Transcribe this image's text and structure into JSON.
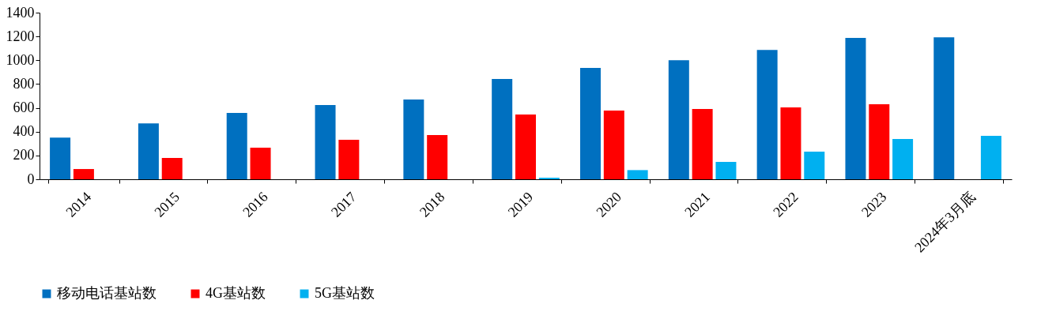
{
  "chart_data": {
    "type": "bar",
    "categories": [
      "2014",
      "2015",
      "2016",
      "2017",
      "2018",
      "2019",
      "2020",
      "2021",
      "2022",
      "2023",
      "2024年3月底"
    ],
    "series": [
      {
        "name": "移动电话基站数",
        "color": "#0070c0",
        "values": [
          350,
          470,
          557,
          623,
          670,
          842,
          935,
          1000,
          1087,
          1187,
          1193
        ]
      },
      {
        "name": "4G基站数",
        "color": "#ff0000",
        "values": [
          86,
          179,
          265,
          331,
          371,
          544,
          577,
          590,
          603,
          630,
          null
        ]
      },
      {
        "name": "5G基站数",
        "color": "#00b0f0",
        "values": [
          null,
          null,
          null,
          null,
          null,
          13,
          77,
          146,
          232,
          338,
          365
        ]
      }
    ],
    "ylim": [
      0,
      1400
    ],
    "yticks": [
      0,
      200,
      400,
      600,
      800,
      1000,
      1200,
      1400
    ],
    "grid": false,
    "legend": "bottom"
  }
}
